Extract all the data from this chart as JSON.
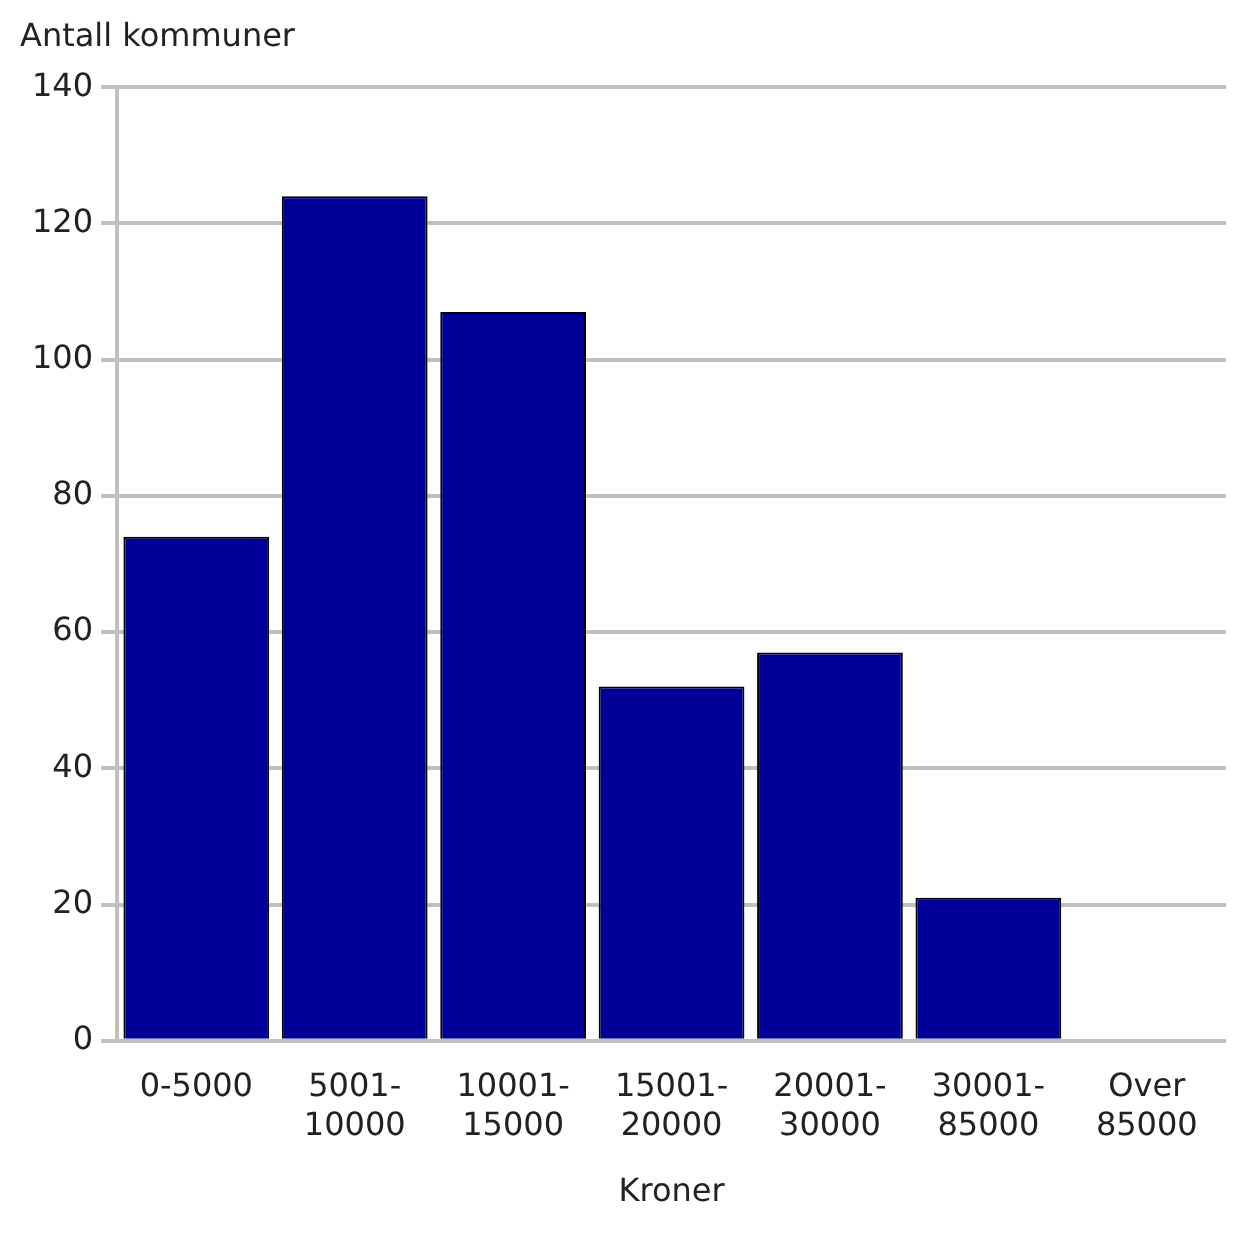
{
  "chart_data": {
    "type": "bar",
    "ylabel": "Antall kommuner",
    "xlabel": "Kroner",
    "categories": [
      "0-5000",
      "5001-10000",
      "10001-15000",
      "15001-20000",
      "20001-30000",
      "30001-85000",
      "Over 85000"
    ],
    "values": [
      74,
      124,
      107,
      52,
      57,
      21,
      0
    ],
    "color": "#000099",
    "ylim": [
      0,
      140
    ],
    "yticks": [
      0,
      20,
      40,
      60,
      80,
      100,
      120,
      140
    ],
    "grid": "y",
    "legend": false
  }
}
